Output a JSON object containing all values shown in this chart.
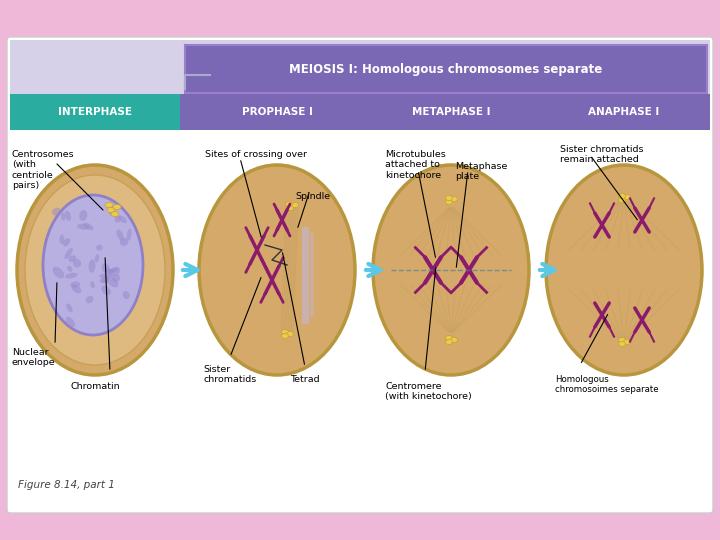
{
  "bg_color": "#f0b8d8",
  "main_bg": "#ffffff",
  "title_text": "MEIOSIS I: Homologous chromosomes separate",
  "title_bg": "#7b68b5",
  "title_color": "#ffffff",
  "header_bg": "#7b68b5",
  "interphase_bg": "#2aada0",
  "phases": [
    "INTERPHASE",
    "PROPHASE I",
    "METAPHASE I",
    "ANAPHASE I"
  ],
  "phase_text_color": "#ffffff",
  "subtitle_bar_bg": "#d6d0e8",
  "figure_caption": "Figure 8.14, part 1",
  "cell_bg": "#d4a96a",
  "cell_outline": "#b8963e",
  "arrow_color": "#5bc8e8",
  "label_color": "#000000",
  "nucleus_color": "#b8b0e0",
  "nucleus_edge": "#9080c8",
  "chrom_color": "#8b1a6b",
  "centriole_color": "#e8cc50"
}
